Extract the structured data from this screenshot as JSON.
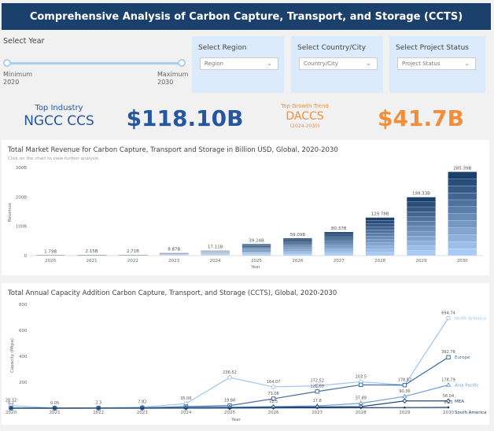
{
  "header": {
    "title": "Comprehensive Analysis of Carbon Capture, Transport, and Storage (CCTS)"
  },
  "filters": {
    "year": {
      "label": "Select Year",
      "min_label": "Minimum",
      "min_value": "2020",
      "max_label": "Maximum",
      "max_value": "2030"
    },
    "region": {
      "label": "Select Region",
      "placeholder": "Region"
    },
    "country": {
      "label": "Select Country/City",
      "placeholder": "Country/City"
    },
    "status": {
      "label": "Select Project Status",
      "placeholder": "Project Status"
    }
  },
  "kpis": {
    "top_industry_label": "Top Industry",
    "top_industry_value": "NGCC CCS",
    "top_industry_amount": "$118.10B",
    "growth_label": "Top Growth Trend",
    "growth_value": "DACCS",
    "growth_period": "(2024-2030)",
    "growth_amount": "$41.7B",
    "colors": {
      "blue": "#2557a0",
      "orange": "#f28e3a"
    }
  },
  "chart_data": [
    {
      "type": "bar",
      "title": "Total Market Revenue for Carbon Capture, Transport and Storage in Billion USD, Global, 2020-2030",
      "subtitle": "Click on the chart to view further analysis",
      "xlabel": "Year",
      "ylabel": "Revenue",
      "categories": [
        "2020",
        "2021",
        "2022",
        "2023",
        "2024",
        "2025",
        "2026",
        "2027",
        "2028",
        "2029",
        "2030"
      ],
      "values": [
        1.79,
        2.15,
        2.71,
        8.87,
        17.11,
        39.24,
        59.09,
        80.37,
        129.78,
        199.33,
        285.39
      ],
      "data_labels": [
        "1.79B",
        "2.15B",
        "2.71B",
        "8.87B",
        "17.11B",
        "39.24B",
        "59.09B",
        "80.37B",
        "129.78B",
        "199.33B",
        "285.39B"
      ],
      "ylim": [
        0,
        300
      ],
      "yticks": [
        0,
        100,
        200,
        300
      ],
      "ytick_labels": [
        "0",
        "100B",
        "200B",
        "300B"
      ],
      "stacked": true,
      "colors": [
        "#a8cbf5",
        "#1b406b"
      ]
    },
    {
      "type": "line",
      "title": "Total Annual Capacity Addition Carbon Capture, Transport, and Storage (CCTS), Global, 2020-2030",
      "xlabel": "Year",
      "ylabel": "Capacity (Mtpa)",
      "x": [
        "2020",
        "2021",
        "2022",
        "2023",
        "2024",
        "2025",
        "2026",
        "2027",
        "2028",
        "2029",
        "2030"
      ],
      "ylim": [
        0,
        800
      ],
      "yticks": [
        0,
        200,
        400,
        600,
        800
      ],
      "series": [
        {
          "name": "North America",
          "color": "#9cc3f0",
          "marker": "circle",
          "values": [
            20.32,
            0.05,
            2.3,
            7.82,
            35.06,
            236.52,
            164.07,
            172.52,
            203.5,
            178.52,
            694.74
          ],
          "labels": [
            "20.32",
            "0.05",
            "2.3",
            "7.82",
            "35.06",
            "236.52",
            "164.07",
            "172.52",
            "203.5",
            "178.52",
            "694.74"
          ]
        },
        {
          "name": "Europe",
          "color": "#3f6ea8",
          "marker": "square",
          "values": [
            0.8,
            0.5,
            1.2,
            3.5,
            12.0,
            19.88,
            73.08,
            128.89,
            180.0,
            178.0,
            392.78
          ],
          "labels": [
            "",
            "",
            "",
            "",
            "",
            "19.88",
            "73.08",
            "128.89",
            "",
            "",
            "392.78"
          ]
        },
        {
          "name": "Asia Pacific",
          "color": "#6d9fd6",
          "marker": "triangle",
          "values": [
            0.5,
            0.3,
            0.8,
            2.0,
            6.0,
            8.0,
            12.5,
            17.8,
            37.89,
            90.36,
            178.79
          ],
          "labels": [
            "",
            "",
            "",
            "",
            "",
            "",
            "12.5",
            "17.8",
            "37.89",
            "90.36",
            "178.79"
          ]
        },
        {
          "name": "MEA",
          "color": "#23497a",
          "marker": "diamond",
          "values": [
            0.2,
            0.1,
            0.3,
            0.5,
            2.0,
            4.0,
            8.0,
            10.0,
            12.0,
            56.04,
            56.04
          ],
          "labels": [
            "0.2",
            "",
            "",
            "",
            "",
            "",
            "",
            "",
            "",
            "",
            "56.04"
          ]
        },
        {
          "name": "South America",
          "color": "#1b406b",
          "marker": "dot",
          "values": [
            0.1,
            0.1,
            0.1,
            0.2,
            0.5,
            1.0,
            2.0,
            3.0,
            4.0,
            5.0,
            6.23
          ],
          "labels": [
            "",
            "",
            "",
            "",
            "",
            "",
            "",
            "",
            "",
            "",
            "6.23"
          ]
        }
      ],
      "legend": "right"
    }
  ]
}
